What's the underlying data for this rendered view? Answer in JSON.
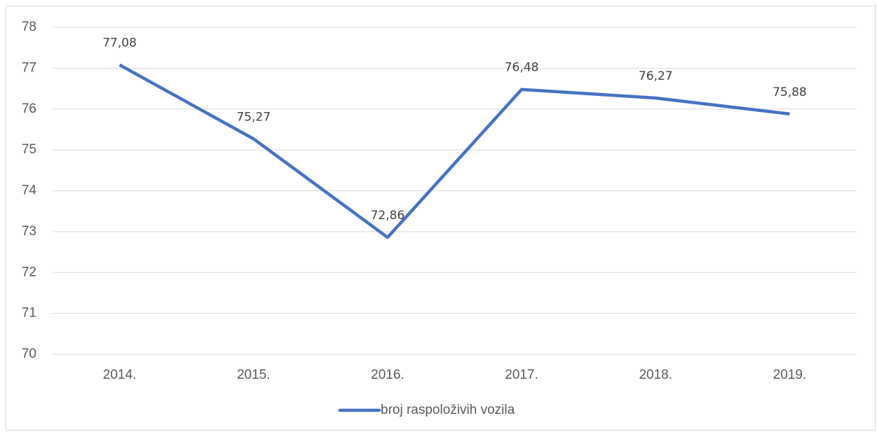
{
  "chart_data": {
    "type": "line",
    "categories": [
      "2014.",
      "2015.",
      "2016.",
      "2017.",
      "2018.",
      "2019."
    ],
    "series": [
      {
        "name": "broj raspoloživih vozila",
        "color": "#4472c4",
        "values": [
          77.08,
          75.27,
          72.86,
          76.48,
          76.27,
          75.88
        ],
        "value_labels": [
          "77,08",
          "75,27",
          "72,86",
          "76,48",
          "76,27",
          "75,88"
        ]
      }
    ],
    "ylim": [
      70,
      78
    ],
    "yticks": [
      70,
      71,
      72,
      73,
      74,
      75,
      76,
      77,
      78
    ],
    "grid": true,
    "legend": "bottom"
  }
}
